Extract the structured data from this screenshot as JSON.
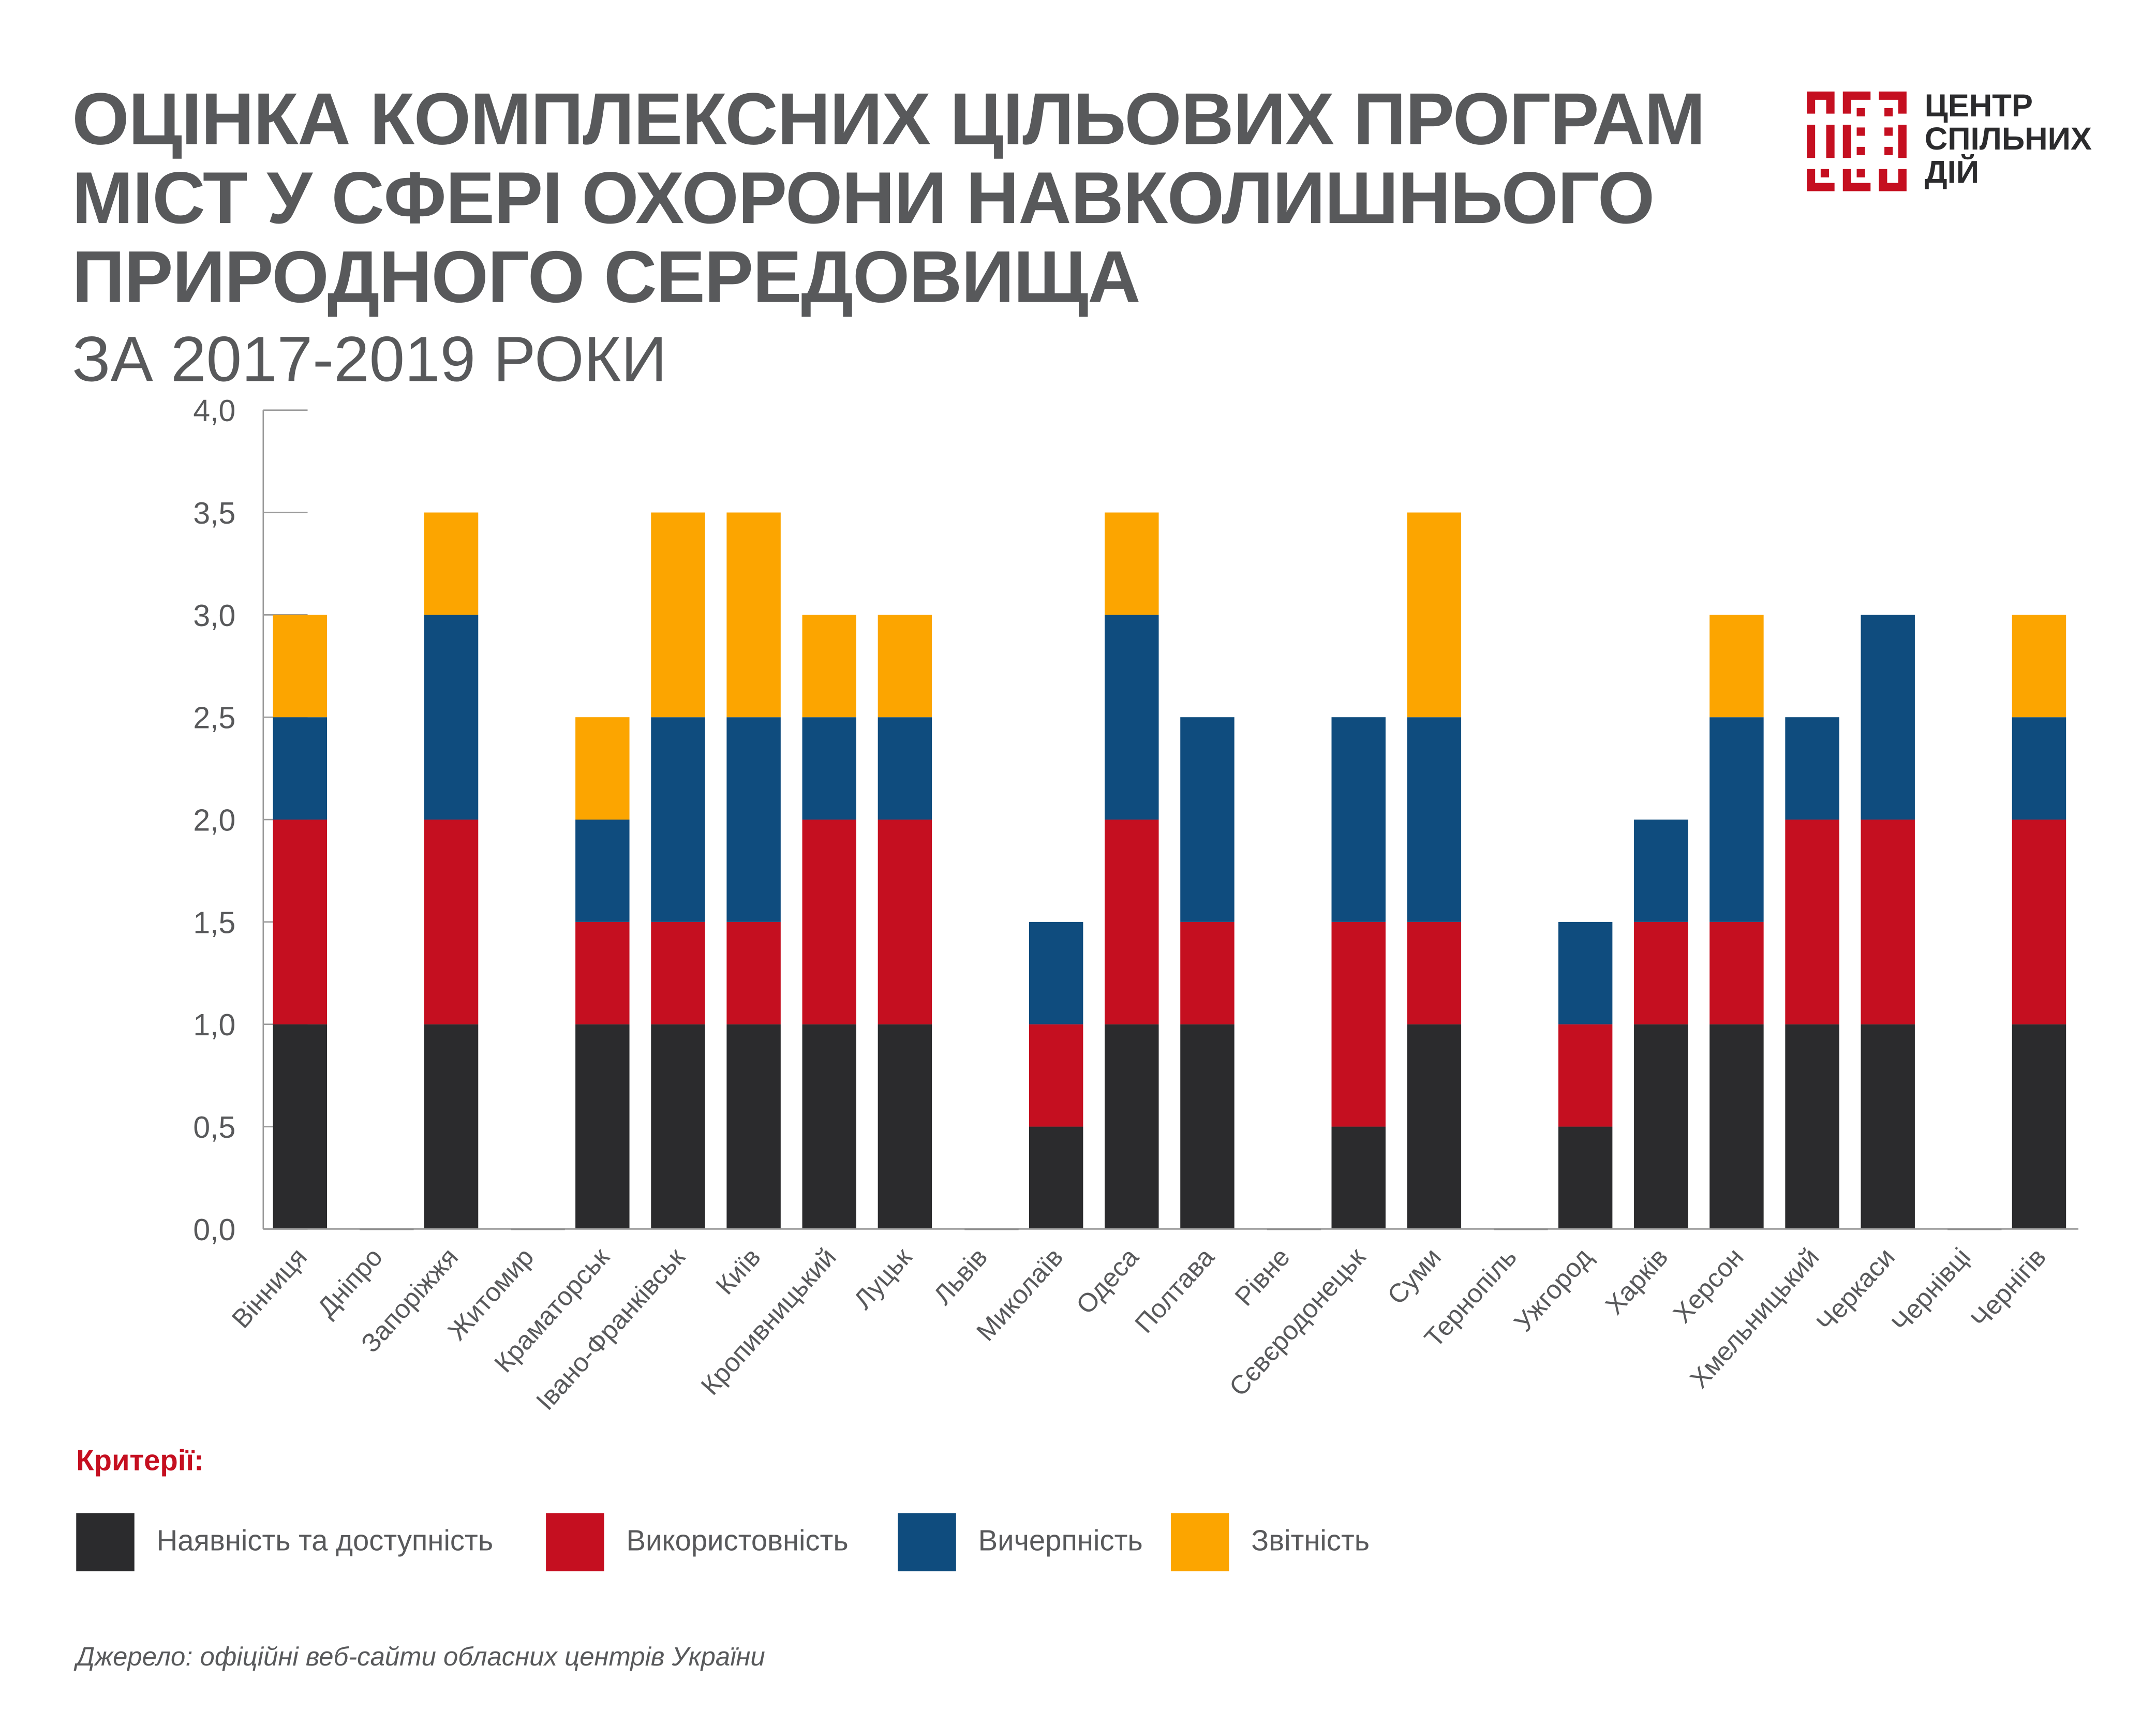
{
  "title_lines": [
    "ОЦІНКА КОМПЛЕКСНИХ ЦІЛЬОВИХ ПРОГРАМ",
    "МІСТ У СФЕРІ ОХОРОНИ НАВКОЛИШНЬОГО",
    "ПРИРОДНОГО СЕРЕДОВИЩА"
  ],
  "subtitle": "ЗА 2017-2019 РОКИ",
  "logo": {
    "lines": [
      "ЦЕНТР",
      "СПІЛЬНИХ",
      "ДІЙ"
    ],
    "color": "#c50f20"
  },
  "legend": {
    "title": "Критерії:"
  },
  "source": "Джерело: офіційні веб-сайти обласних центрів України",
  "chart_data": {
    "type": "bar",
    "stacked": true,
    "ylim": [
      0,
      4.0
    ],
    "yticks": [
      "0,0",
      "0,5",
      "1,0",
      "1,5",
      "2,0",
      "2,5",
      "3,0",
      "3,5",
      "4,0"
    ],
    "grid": false,
    "legend_position": "bottom",
    "categories": [
      "Вінниця",
      "Дніпро",
      "Запоріжжя",
      "Житомир",
      "Краматорськ",
      "Івано-Франківськ",
      "Київ",
      "Кропивницький",
      "Луцьк",
      "Львів",
      "Миколаїв",
      "Одеса",
      "Полтава",
      "Рівне",
      "Сєвєродонецьк",
      "Суми",
      "Тернопіль",
      "Ужгород",
      "Харків",
      "Херсон",
      "Хмельницький",
      "Черкаси",
      "Чернівці",
      "Чернігів"
    ],
    "series": [
      {
        "name": "Наявність та доступність",
        "color": "#2b2b2d",
        "values": [
          1,
          0,
          1,
          0,
          1,
          1,
          1,
          1,
          1,
          0,
          0.5,
          1,
          1,
          0,
          0.5,
          1,
          0,
          0.5,
          1,
          1,
          1,
          1,
          0,
          1
        ]
      },
      {
        "name": "Використовність",
        "color": "#c50f20",
        "values": [
          1,
          0,
          1,
          0,
          0.5,
          0.5,
          0.5,
          1,
          1,
          0,
          0.5,
          1,
          0.5,
          0,
          1,
          0.5,
          0,
          0.5,
          0.5,
          0.5,
          1,
          1,
          0,
          1
        ]
      },
      {
        "name": "Вичерпність",
        "color": "#0f4c7e",
        "values": [
          0.5,
          0,
          1,
          0,
          0.5,
          1,
          1,
          0.5,
          0.5,
          0,
          0.5,
          1,
          1,
          0,
          1,
          1,
          0,
          0.5,
          0.5,
          1,
          0.5,
          1,
          0,
          0.5
        ]
      },
      {
        "name": "Звітність",
        "color": "#fca500",
        "values": [
          0.5,
          0,
          0.5,
          0,
          0.5,
          1,
          1,
          0.5,
          0.5,
          0,
          0,
          0.5,
          0,
          0,
          0,
          1,
          0,
          0,
          0,
          0.5,
          0,
          0,
          0,
          0.5
        ]
      }
    ]
  }
}
